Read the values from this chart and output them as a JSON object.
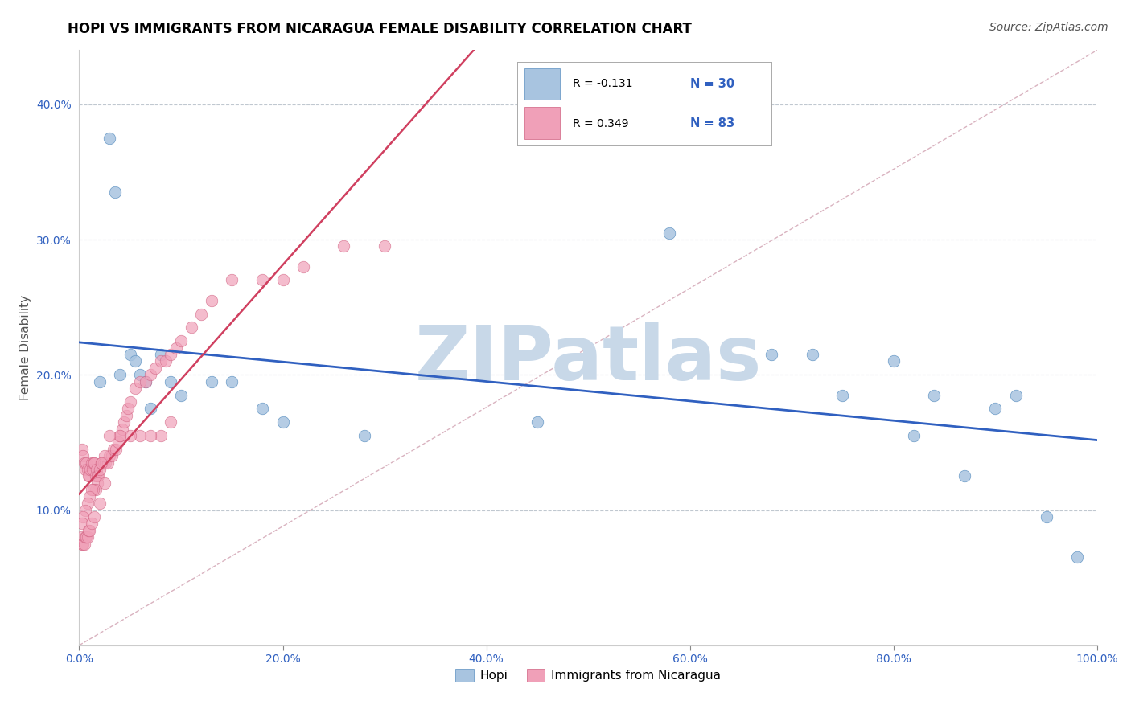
{
  "title": "HOPI VS IMMIGRANTS FROM NICARAGUA FEMALE DISABILITY CORRELATION CHART",
  "source": "Source: ZipAtlas.com",
  "ylabel": "Female Disability",
  "hopi_color": "#a8c4e0",
  "hopi_edge_color": "#5a8fc0",
  "nicaragua_color": "#f0a0b8",
  "nicaragua_edge_color": "#d06080",
  "hopi_line_color": "#3060c0",
  "nicaragua_line_color": "#d04060",
  "ref_line_color": "#d0a0b0",
  "watermark_text": "ZIPatlas",
  "watermark_color": "#c8d8e8",
  "xlim": [
    0.0,
    1.0
  ],
  "ylim": [
    0.0,
    0.44
  ],
  "xticks": [
    0.0,
    0.2,
    0.4,
    0.6,
    0.8,
    1.0
  ],
  "xtick_labels": [
    "0.0%",
    "20.0%",
    "40.0%",
    "60.0%",
    "80.0%",
    "100.0%"
  ],
  "yticks": [
    0.1,
    0.2,
    0.3,
    0.4
  ],
  "ytick_labels": [
    "10.0%",
    "20.0%",
    "30.0%",
    "40.0%"
  ],
  "tick_color": "#3060c0",
  "hopi_R": "-0.131",
  "hopi_N": "30",
  "nicaragua_R": "0.349",
  "nicaragua_N": "83",
  "hopi_x": [
    0.02,
    0.04,
    0.05,
    0.06,
    0.07,
    0.08,
    0.09,
    0.1,
    0.13,
    0.15,
    0.18,
    0.2,
    0.28,
    0.45,
    0.58,
    0.68,
    0.72,
    0.75,
    0.8,
    0.82,
    0.84,
    0.87,
    0.9,
    0.92,
    0.95,
    0.98,
    0.03,
    0.035,
    0.055,
    0.065
  ],
  "hopi_y": [
    0.195,
    0.2,
    0.215,
    0.2,
    0.175,
    0.215,
    0.195,
    0.185,
    0.195,
    0.195,
    0.175,
    0.165,
    0.155,
    0.165,
    0.305,
    0.215,
    0.215,
    0.185,
    0.21,
    0.155,
    0.185,
    0.125,
    0.175,
    0.185,
    0.095,
    0.065,
    0.375,
    0.335,
    0.21,
    0.195
  ],
  "nicaragua_x": [
    0.003,
    0.004,
    0.005,
    0.006,
    0.007,
    0.008,
    0.009,
    0.01,
    0.011,
    0.012,
    0.013,
    0.014,
    0.015,
    0.016,
    0.017,
    0.018,
    0.019,
    0.02,
    0.022,
    0.024,
    0.026,
    0.028,
    0.03,
    0.032,
    0.034,
    0.036,
    0.038,
    0.04,
    0.042,
    0.044,
    0.046,
    0.048,
    0.05,
    0.055,
    0.06,
    0.065,
    0.07,
    0.075,
    0.08,
    0.085,
    0.09,
    0.095,
    0.1,
    0.11,
    0.12,
    0.13,
    0.15,
    0.18,
    0.2,
    0.22,
    0.26,
    0.3,
    0.09,
    0.08,
    0.07,
    0.06,
    0.05,
    0.04,
    0.03,
    0.025,
    0.022,
    0.018,
    0.016,
    0.014,
    0.012,
    0.01,
    0.008,
    0.006,
    0.004,
    0.003,
    0.002,
    0.003,
    0.004,
    0.005,
    0.006,
    0.007,
    0.008,
    0.009,
    0.01,
    0.012,
    0.015,
    0.02,
    0.025
  ],
  "nicaragua_y": [
    0.145,
    0.14,
    0.135,
    0.13,
    0.135,
    0.13,
    0.125,
    0.125,
    0.13,
    0.135,
    0.13,
    0.135,
    0.135,
    0.125,
    0.13,
    0.125,
    0.125,
    0.13,
    0.135,
    0.135,
    0.135,
    0.135,
    0.14,
    0.14,
    0.145,
    0.145,
    0.15,
    0.155,
    0.16,
    0.165,
    0.17,
    0.175,
    0.18,
    0.19,
    0.195,
    0.195,
    0.2,
    0.205,
    0.21,
    0.21,
    0.215,
    0.22,
    0.225,
    0.235,
    0.245,
    0.255,
    0.27,
    0.27,
    0.27,
    0.28,
    0.295,
    0.295,
    0.165,
    0.155,
    0.155,
    0.155,
    0.155,
    0.155,
    0.155,
    0.14,
    0.135,
    0.12,
    0.115,
    0.115,
    0.115,
    0.11,
    0.105,
    0.1,
    0.095,
    0.09,
    0.08,
    0.075,
    0.075,
    0.075,
    0.08,
    0.08,
    0.08,
    0.085,
    0.085,
    0.09,
    0.095,
    0.105,
    0.12
  ]
}
